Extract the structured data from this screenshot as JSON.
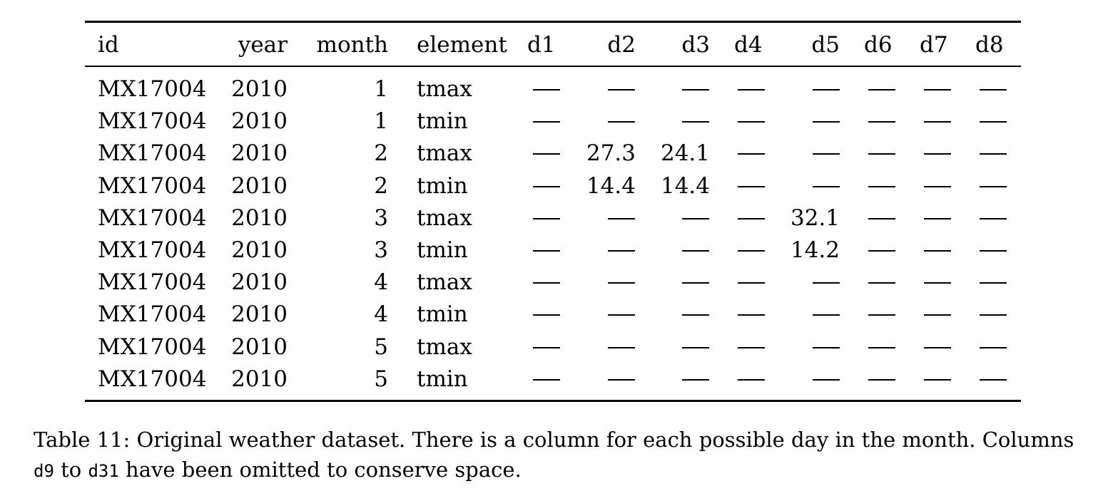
{
  "table": {
    "headers": [
      "id",
      "year",
      "month",
      "element",
      "d1",
      "d2",
      "d3",
      "d4",
      "d5",
      "d6",
      "d7",
      "d8"
    ],
    "rows": [
      [
        "MX17004",
        "2010",
        "1",
        "tmax",
        "—",
        "—",
        "—",
        "—",
        "—",
        "—",
        "—",
        "—"
      ],
      [
        "MX17004",
        "2010",
        "1",
        "tmin",
        "—",
        "—",
        "—",
        "—",
        "—",
        "—",
        "—",
        "—"
      ],
      [
        "MX17004",
        "2010",
        "2",
        "tmax",
        "—",
        "27.3",
        "24.1",
        "—",
        "—",
        "—",
        "—",
        "—"
      ],
      [
        "MX17004",
        "2010",
        "2",
        "tmin",
        "—",
        "14.4",
        "14.4",
        "—",
        "—",
        "—",
        "—",
        "—"
      ],
      [
        "MX17004",
        "2010",
        "3",
        "tmax",
        "—",
        "—",
        "—",
        "—",
        "32.1",
        "—",
        "—",
        "—"
      ],
      [
        "MX17004",
        "2010",
        "3",
        "tmin",
        "—",
        "—",
        "—",
        "—",
        "14.2",
        "—",
        "—",
        "—"
      ],
      [
        "MX17004",
        "2010",
        "4",
        "tmax",
        "—",
        "—",
        "—",
        "—",
        "—",
        "—",
        "—",
        "—"
      ],
      [
        "MX17004",
        "2010",
        "4",
        "tmin",
        "—",
        "—",
        "—",
        "—",
        "—",
        "—",
        "—",
        "—"
      ],
      [
        "MX17004",
        "2010",
        "5",
        "tmax",
        "—",
        "—",
        "—",
        "—",
        "—",
        "—",
        "—",
        "—"
      ],
      [
        "MX17004",
        "2010",
        "5",
        "tmin",
        "—",
        "—",
        "—",
        "—",
        "—",
        "—",
        "—",
        "—"
      ]
    ]
  },
  "caption": {
    "line1": "Table 11: Original weather dataset. There is a column for each possible day in the month. Columns",
    "code_start": "d9",
    "between": " to ",
    "code_end": "d31",
    "rest": " have been omitted to conserve space."
  }
}
